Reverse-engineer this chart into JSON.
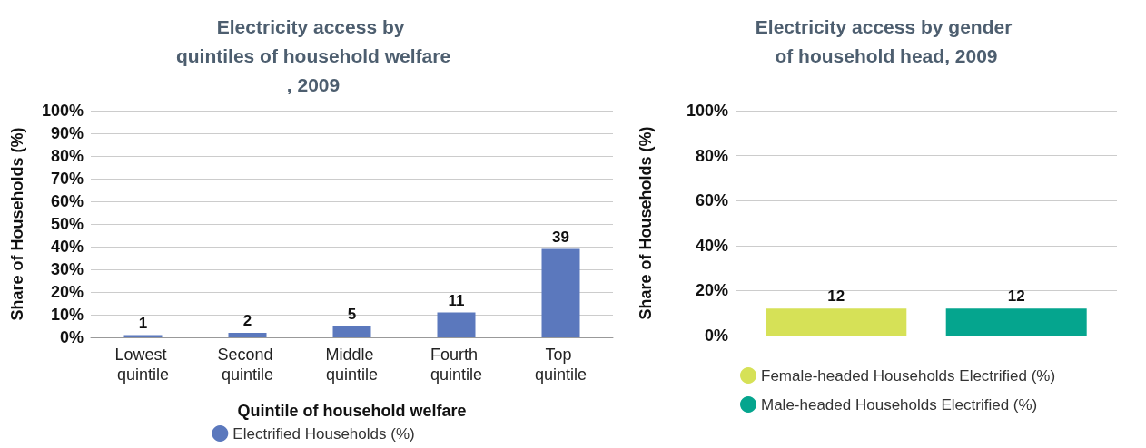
{
  "chart_data": [
    {
      "type": "bar",
      "title": "Electricity access by quintiles of household welfare, 2009",
      "xlabel": "Quintile of household welfare",
      "ylabel": "Share of Households (%)",
      "categories": [
        "Lowest quintile",
        "Second quintile",
        "Middle quintile",
        "Fourth quintile",
        "Top quintile"
      ],
      "series": [
        {
          "name": "Electrified Households (%)",
          "color": "#5b78bd",
          "values": [
            1,
            2,
            5,
            11,
            39
          ]
        }
      ],
      "ylim": [
        0,
        100
      ],
      "yticks": [
        {
          "value": 0,
          "label": "0%"
        },
        {
          "value": 10,
          "label": "10%"
        },
        {
          "value": 20,
          "label": "20%"
        },
        {
          "value": 30,
          "label": "30%"
        },
        {
          "value": 40,
          "label": "40%"
        },
        {
          "value": 50,
          "label": "50%"
        },
        {
          "value": 60,
          "label": "60%"
        },
        {
          "value": 70,
          "label": "70%"
        },
        {
          "value": 80,
          "label": "80%"
        },
        {
          "value": 90,
          "label": "90%"
        },
        {
          "value": 100,
          "label": "100%"
        }
      ],
      "grid": "y",
      "legend": "bottom",
      "data_labels": true
    },
    {
      "type": "bar",
      "title": "Electricity access by gender of household head, 2009",
      "ylabel": "Share of Households (%)",
      "categories": [
        null
      ],
      "series": [
        {
          "name": "Female-headed Households Electrified (%)",
          "color": "#d6e157",
          "values": [
            12
          ]
        },
        {
          "name": "Male-headed Households Electrified (%)",
          "color": "#05a58e",
          "values": [
            12
          ]
        }
      ],
      "ylim": [
        0,
        100
      ],
      "yticks": [
        {
          "value": 0,
          "label": "0%"
        },
        {
          "value": 20,
          "label": "20%"
        },
        {
          "value": 40,
          "label": "40%"
        },
        {
          "value": 60,
          "label": "60%"
        },
        {
          "value": 80,
          "label": "80%"
        },
        {
          "value": 100,
          "label": "100%"
        }
      ],
      "grid": "y",
      "legend": "bottom left",
      "data_labels": true
    }
  ]
}
